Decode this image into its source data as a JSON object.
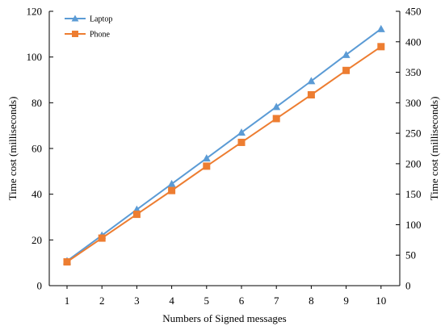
{
  "chart_data": {
    "type": "line",
    "xlabel": "Numbers of Signed messages",
    "ylabel_left": "Time cost (milliseconds)",
    "ylabel_right": "Time cost (milliseconds)",
    "x": [
      1,
      2,
      3,
      4,
      5,
      6,
      7,
      8,
      9,
      10
    ],
    "ylim_left": [
      0,
      120
    ],
    "yticks_left": [
      0,
      20,
      40,
      60,
      80,
      100,
      120
    ],
    "ylim_right": [
      0,
      450
    ],
    "yticks_right": [
      0,
      50,
      100,
      150,
      200,
      250,
      300,
      350,
      400,
      450
    ],
    "grid": false,
    "legend_position": "top-left",
    "series": [
      {
        "name": "Laptop",
        "axis": "left",
        "marker": "triangle",
        "color": "#5b9bd5",
        "values": [
          10.8,
          22.0,
          33.3,
          44.5,
          55.7,
          67.0,
          78.2,
          89.5,
          101.0,
          112.3
        ]
      },
      {
        "name": "Phone",
        "axis": "right",
        "marker": "square",
        "color": "#ed7d31",
        "values": [
          39,
          78,
          117,
          156,
          196,
          235,
          274,
          313,
          353,
          392
        ]
      }
    ]
  }
}
